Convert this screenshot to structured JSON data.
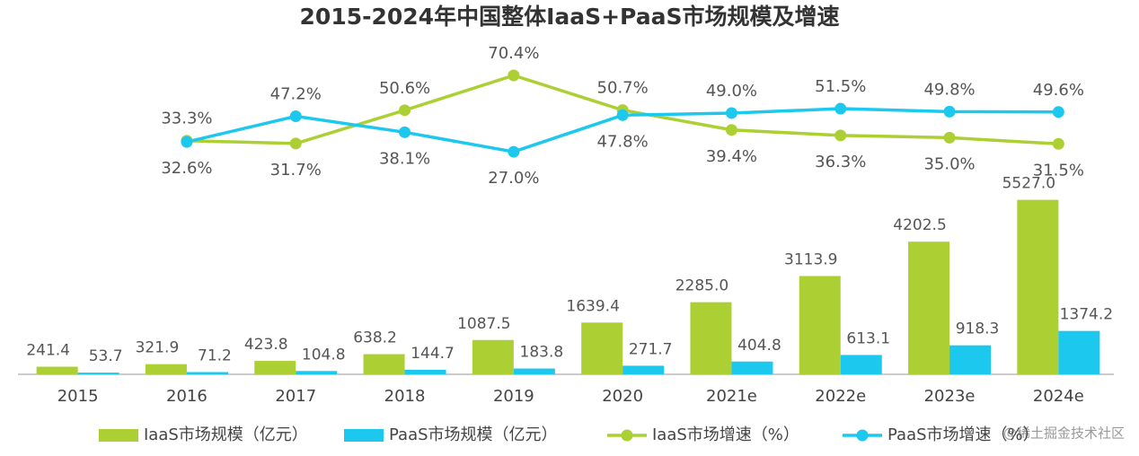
{
  "chart_data": {
    "type": "bar",
    "title": "2015-2024年中国整体IaaS+PaaS市场规模及增速",
    "categories": [
      "2015",
      "2016",
      "2017",
      "2018",
      "2019",
      "2020",
      "2021e",
      "2022e",
      "2023e",
      "2024e"
    ],
    "ylim": [
      0,
      6000
    ],
    "y2lim": [
      0,
      100
    ],
    "series": [
      {
        "name": "IaaS市场规模（亿元）",
        "type": "bar",
        "color": "#acd034",
        "values": [
          241.4,
          321.9,
          423.8,
          638.2,
          1087.5,
          1639.4,
          2285.0,
          3113.9,
          4202.5,
          5527.0
        ],
        "value_labels": [
          "241.4",
          "321.9",
          "423.8",
          "638.2",
          "1087.5",
          "1639.4",
          "2285.0",
          "3113.9",
          "4202.5",
          "5527.0"
        ]
      },
      {
        "name": "PaaS市场规模（亿元）",
        "type": "bar",
        "color": "#1cc8ee",
        "values": [
          53.7,
          71.2,
          104.8,
          144.7,
          183.8,
          271.7,
          404.8,
          613.1,
          918.3,
          1374.2
        ],
        "value_labels": [
          "53.7",
          "71.2",
          "104.8",
          "144.7",
          "183.8",
          "271.7",
          "404.8",
          "613.1",
          "918.3",
          "1374.2"
        ]
      },
      {
        "name": "IaaS市场增速（%）",
        "type": "line",
        "axis": "y2",
        "color": "#acd034",
        "values": [
          null,
          33.3,
          31.7,
          50.6,
          70.4,
          50.7,
          39.4,
          36.3,
          35.0,
          31.5
        ],
        "value_labels": [
          null,
          "33.3%",
          "31.7%",
          "50.6%",
          "70.4%",
          "50.7%",
          "39.4%",
          "36.3%",
          "35.0%",
          "31.5%"
        ]
      },
      {
        "name": "PaaS市场增速（%）",
        "type": "line",
        "axis": "y2",
        "color": "#1cc8ee",
        "values": [
          null,
          32.6,
          47.2,
          38.1,
          27.0,
          47.8,
          49.0,
          51.5,
          49.8,
          49.6
        ],
        "value_labels": [
          null,
          "32.6%",
          "47.2%",
          "38.1%",
          "27.0%",
          "47.8%",
          "49.0%",
          "51.5%",
          "49.8%",
          "49.6%"
        ]
      }
    ],
    "watermark": "@稀土掘金技术社区"
  }
}
